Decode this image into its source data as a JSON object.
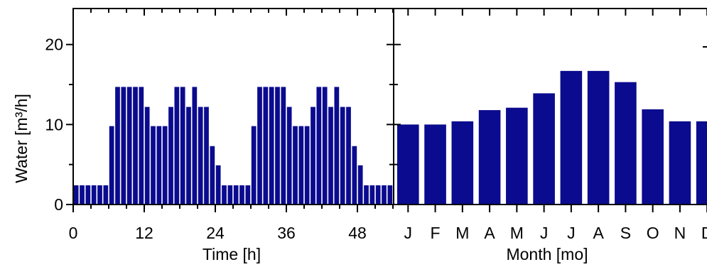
{
  "colors": {
    "bar": "#0b0b8f",
    "axis": "#000000"
  },
  "ylabel": "Water [m³/h]",
  "yticks": [
    "0",
    "10",
    "20"
  ],
  "chart_data": [
    {
      "type": "bar",
      "xlabel": "Time [h]",
      "ylabel": "Water [m³/h]",
      "xlim": [
        0,
        54
      ],
      "ylim": [
        0,
        24.5
      ],
      "xticks": [
        "0",
        "12",
        "24",
        "36",
        "48"
      ],
      "x": [
        0,
        1,
        2,
        3,
        4,
        5,
        6,
        7,
        8,
        9,
        10,
        11,
        12,
        13,
        14,
        15,
        16,
        17,
        18,
        19,
        20,
        21,
        22,
        23,
        24,
        25,
        26,
        27,
        28,
        29,
        30,
        31,
        32,
        33,
        34,
        35,
        36,
        37,
        38,
        39,
        40,
        41,
        42,
        43,
        44,
        45,
        46,
        47,
        48,
        49,
        50,
        51,
        52,
        53
      ],
      "values": [
        2.4,
        2.4,
        2.4,
        2.4,
        2.4,
        2.4,
        9.8,
        14.7,
        14.7,
        14.7,
        14.7,
        14.7,
        12.2,
        9.8,
        9.8,
        9.8,
        12.2,
        14.7,
        14.7,
        12.2,
        14.7,
        12.2,
        12.2,
        7.3,
        4.9,
        2.4,
        2.4,
        2.4,
        2.4,
        2.4,
        9.8,
        14.7,
        14.7,
        14.7,
        14.7,
        14.7,
        12.2,
        9.8,
        9.8,
        9.8,
        12.2,
        14.7,
        14.7,
        12.2,
        14.7,
        12.2,
        12.2,
        7.3,
        4.9,
        2.4,
        2.4,
        2.4,
        2.4,
        2.4
      ],
      "grid": false
    },
    {
      "type": "bar",
      "xlabel": "Month [mo]",
      "ylim": [
        0,
        24.5
      ],
      "categories": [
        "J",
        "F",
        "M",
        "A",
        "M",
        "J",
        "J",
        "A",
        "S",
        "O",
        "N",
        "D"
      ],
      "values": [
        10.0,
        10.0,
        10.4,
        11.8,
        12.1,
        13.9,
        16.7,
        16.7,
        15.3,
        11.9,
        10.4,
        10.4
      ],
      "grid": false
    }
  ]
}
